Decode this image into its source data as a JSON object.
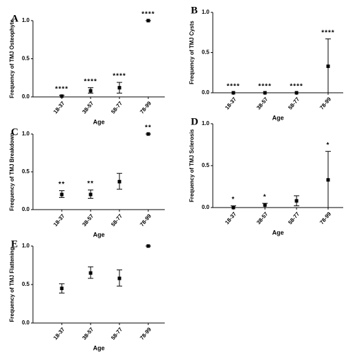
{
  "chart_data": [
    {
      "type": "dotplot",
      "panel": "A",
      "ylabel": "Frequency of TMJ Osteophyte",
      "xlabel": "Age",
      "categories": [
        "18-37",
        "38-57",
        "58-77",
        "78-99"
      ],
      "values": [
        0.01,
        0.08,
        0.12,
        1.0
      ],
      "lower": [
        0.0,
        0.05,
        0.05,
        1.0
      ],
      "upper": [
        0.02,
        0.12,
        0.19,
        1.0
      ],
      "annotations": [
        "****",
        "****",
        "****",
        "****"
      ],
      "ylim": [
        0,
        1
      ],
      "yticks": [
        {
          "value": 0,
          "label": "0.0"
        },
        {
          "value": 0.5,
          "label": "0.5"
        },
        {
          "value": 1,
          "label": "1.0"
        }
      ]
    },
    {
      "type": "dotplot",
      "panel": "B",
      "ylabel": "Frequency of TMJ Cysts",
      "xlabel": "Age",
      "categories": [
        "18-37",
        "38-57",
        "58-77",
        "78-99"
      ],
      "values": [
        0,
        0,
        0,
        0.33
      ],
      "lower": [
        0,
        0,
        0,
        0
      ],
      "upper": [
        0,
        0,
        0,
        0.67
      ],
      "annotations": [
        "****",
        "****",
        "****",
        "****"
      ],
      "ylim": [
        0,
        1
      ],
      "yticks": [
        {
          "value": 0,
          "label": "0.0"
        },
        {
          "value": 0.5,
          "label": "0.5"
        },
        {
          "value": 1,
          "label": "1.0"
        }
      ]
    },
    {
      "type": "dotplot",
      "panel": "C",
      "ylabel": "Frequency of TMJ Breakdown",
      "xlabel": "Age",
      "categories": [
        "18-37",
        "38-57",
        "58-77",
        "78-99"
      ],
      "values": [
        0.2,
        0.2,
        0.37,
        1.0
      ],
      "lower": [
        0.16,
        0.15,
        0.27,
        1.0
      ],
      "upper": [
        0.25,
        0.26,
        0.48,
        1.0
      ],
      "annotations": [
        "**",
        "**",
        null,
        "**"
      ],
      "ylim": [
        0,
        1
      ],
      "yticks": [
        {
          "value": 0,
          "label": "0.0"
        },
        {
          "value": 0.5,
          "label": "0.5"
        },
        {
          "value": 1,
          "label": "1.0"
        }
      ]
    },
    {
      "type": "dotplot",
      "panel": "D",
      "ylabel": "Frequency of TMJ Sclerosis",
      "xlabel": "Age",
      "categories": [
        "18-37",
        "38-57",
        "58-77",
        "78-99"
      ],
      "values": [
        0.0,
        0.03,
        0.08,
        0.33
      ],
      "lower": [
        0,
        0,
        0.02,
        0
      ],
      "upper": [
        0.02,
        0.05,
        0.14,
        0.67
      ],
      "annotations": [
        "*",
        "*",
        null,
        "*"
      ],
      "ylim": [
        0,
        1
      ],
      "yticks": [
        {
          "value": 0,
          "label": "0.0"
        },
        {
          "value": 0.5,
          "label": "0.5"
        },
        {
          "value": 1,
          "label": "1.0"
        }
      ]
    },
    {
      "type": "dotplot",
      "panel": "E",
      "ylabel": "Frequency of TMJ Flattening",
      "xlabel": "Age",
      "categories": [
        "18-37",
        "38-57",
        "58-77",
        "78-99"
      ],
      "values": [
        0.45,
        0.65,
        0.58,
        1.0
      ],
      "lower": [
        0.39,
        0.58,
        0.48,
        1.0
      ],
      "upper": [
        0.51,
        0.73,
        0.69,
        1.0
      ],
      "annotations": [
        null,
        null,
        null,
        null
      ],
      "ylim": [
        0,
        1
      ],
      "yticks": [
        {
          "value": 0,
          "label": "0.0"
        },
        {
          "value": 0.5,
          "label": "0.5"
        },
        {
          "value": 1,
          "label": "1.0"
        }
      ]
    }
  ]
}
